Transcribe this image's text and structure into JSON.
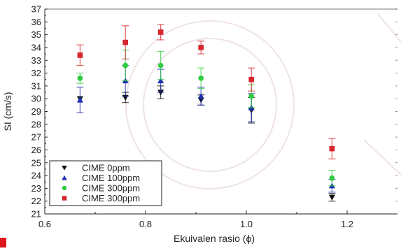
{
  "chart_data": {
    "type": "scatter",
    "title": "",
    "xlabel": "Ekuivalen rasio (ϕ)",
    "ylabel": "SI (cm/s)",
    "xlim": [
      0.6,
      1.3
    ],
    "ylim": [
      21,
      37
    ],
    "xticks": [
      0.6,
      0.8,
      1.0,
      1.2
    ],
    "xtick_labels": [
      "0.6",
      "0.8",
      "1.0",
      "1.2"
    ],
    "yticks": [
      21,
      22,
      23,
      24,
      25,
      26,
      27,
      28,
      29,
      30,
      31,
      32,
      33,
      34,
      35,
      36,
      37
    ],
    "ytick_labels": [
      "21",
      "22",
      "23",
      "24",
      "25",
      "26",
      "27",
      "28",
      "29",
      "30",
      "31",
      "32",
      "33",
      "34",
      "35",
      "36",
      "37"
    ],
    "legend_position": "bottom-left",
    "grid": false,
    "series": [
      {
        "name": "CIME 0ppm",
        "marker": "triangle-down",
        "color": "#111111",
        "x": [
          0.67,
          0.76,
          0.83,
          0.91,
          1.01,
          1.17
        ],
        "y": [
          30.0,
          30.1,
          30.5,
          29.9,
          29.1,
          22.3
        ],
        "err": [
          0.0,
          0.4,
          0.5,
          0.4,
          1.0,
          0.3
        ]
      },
      {
        "name": "CIME 100ppm",
        "marker": "triangle-up",
        "color": "#1f2fb0",
        "x": [
          0.67,
          0.76,
          0.83,
          0.91,
          1.01,
          1.17
        ],
        "y": [
          29.9,
          31.4,
          31.4,
          30.2,
          29.3,
          23.2
        ],
        "err": [
          1.0,
          1.2,
          0.9,
          0.7,
          1.1,
          0.5
        ]
      },
      {
        "name": "CIME 300ppm",
        "marker": "circle",
        "color": "#2ecc40",
        "x": [
          0.67,
          0.76,
          0.83,
          0.91,
          1.01,
          1.17
        ],
        "y": [
          31.6,
          32.6,
          32.6,
          31.6,
          30.2,
          23.8
        ],
        "err": [
          0.4,
          1.2,
          1.1,
          0.8,
          0.9,
          0.6
        ]
      },
      {
        "name": "CIME 300ppm",
        "marker": "square",
        "color": "#d6262e",
        "x": [
          0.67,
          0.76,
          0.83,
          0.91,
          1.01,
          1.17
        ],
        "y": [
          33.4,
          34.4,
          35.2,
          34.0,
          31.5,
          26.1
        ],
        "err": [
          0.8,
          1.3,
          0.6,
          0.5,
          0.9,
          0.8
        ]
      }
    ]
  }
}
